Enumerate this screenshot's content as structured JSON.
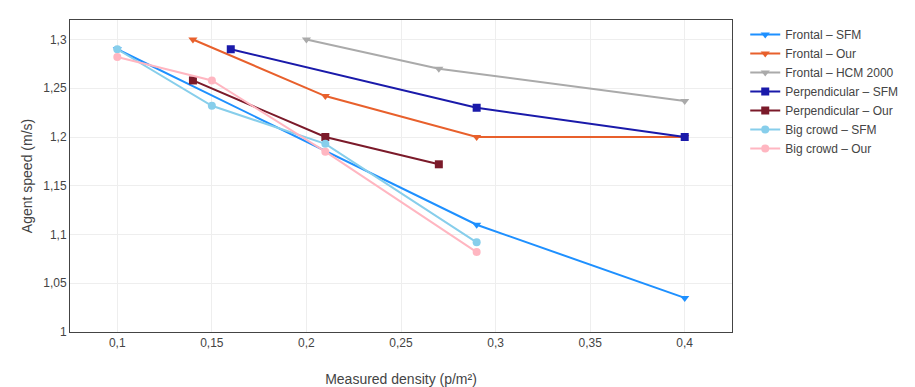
{
  "chart_data": {
    "type": "line",
    "xlabel": "Measured density (p/m²)",
    "ylabel": "Agent speed (m/s)",
    "series": [
      {
        "name": "Frontal – SFM",
        "color": "#1e90ff",
        "marker": "triangle-down",
        "x": [
          0.1,
          0.29,
          0.4
        ],
        "values": [
          1.29,
          1.11,
          1.035
        ]
      },
      {
        "name": "Frontal – Our",
        "color": "#e8602c",
        "marker": "triangle-down",
        "x": [
          0.14,
          0.21,
          0.29,
          0.4
        ],
        "values": [
          1.3,
          1.242,
          1.2,
          1.2
        ]
      },
      {
        "name": "Frontal – HCM 2000",
        "color": "#aaaaaa",
        "marker": "triangle-down",
        "x": [
          0.2,
          0.27,
          0.4
        ],
        "values": [
          1.3,
          1.27,
          1.237
        ]
      },
      {
        "name": "Perpendicular – SFM",
        "color": "#1a1aaa",
        "marker": "square",
        "x": [
          0.16,
          0.29,
          0.4
        ],
        "values": [
          1.29,
          1.23,
          1.2
        ]
      },
      {
        "name": "Perpendicular – Our",
        "color": "#7b1a2a",
        "marker": "square",
        "x": [
          0.14,
          0.21,
          0.27
        ],
        "values": [
          1.258,
          1.2,
          1.172
        ]
      },
      {
        "name": "Big crowd – SFM",
        "color": "#87ceeb",
        "marker": "circle",
        "x": [
          0.1,
          0.15,
          0.21,
          0.29
        ],
        "values": [
          1.29,
          1.232,
          1.193,
          1.092
        ]
      },
      {
        "name": "Big crowd – Our",
        "color": "#ffb6c1",
        "marker": "circle",
        "x": [
          0.1,
          0.15,
          0.21,
          0.29
        ],
        "values": [
          1.282,
          1.258,
          1.185,
          1.082
        ]
      }
    ],
    "xlim": [
      0.075,
      0.425
    ],
    "ylim": [
      1.0,
      1.32
    ],
    "xticks": [
      {
        "value": 0.1,
        "label": "0,1"
      },
      {
        "value": 0.15,
        "label": "0,15"
      },
      {
        "value": 0.2,
        "label": "0,2"
      },
      {
        "value": 0.25,
        "label": "0,25"
      },
      {
        "value": 0.3,
        "label": "0,3"
      },
      {
        "value": 0.35,
        "label": "0,35"
      },
      {
        "value": 0.4,
        "label": "0,4"
      }
    ],
    "yticks": [
      1,
      {
        "value": 1.05,
        "label": "1,05"
      },
      {
        "value": 1.1,
        "label": "1,1"
      },
      {
        "value": 1.15,
        "label": "1,15"
      },
      {
        "value": 1.2,
        "label": "1,2"
      },
      {
        "value": 1.25,
        "label": "1,25"
      },
      {
        "value": 1.3,
        "label": "1,3"
      }
    ],
    "grid": true,
    "legend": "right"
  }
}
